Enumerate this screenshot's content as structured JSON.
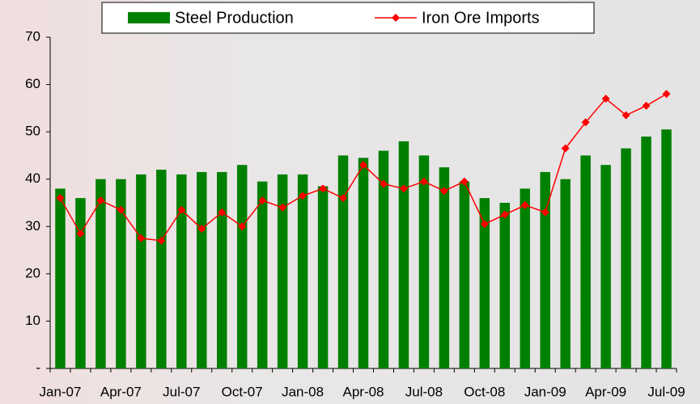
{
  "chart_data": {
    "type": "bar-line",
    "categories": [
      "Jan-07",
      null,
      null,
      "Apr-07",
      null,
      null,
      "Jul-07",
      null,
      null,
      "Oct-07",
      null,
      null,
      "Jan-08",
      null,
      null,
      "Apr-08",
      null,
      null,
      "Jul-08",
      null,
      null,
      "Oct-08",
      null,
      null,
      "Jan-09",
      null,
      null,
      "Apr-09",
      null,
      null,
      "Jul-09"
    ],
    "series": [
      {
        "name": "Steel Production",
        "type": "bar",
        "color": "#008000",
        "values": [
          38,
          36,
          40,
          40,
          41,
          42,
          41,
          41.5,
          41.5,
          43,
          39.5,
          41,
          41,
          38.5,
          45,
          44.5,
          46,
          48,
          45,
          42.5,
          39.5,
          36,
          35,
          38,
          41.5,
          40,
          45,
          43,
          46.5,
          49,
          50.5
        ]
      },
      {
        "name": "Iron Ore Imports",
        "type": "line",
        "color": "#ff0000",
        "values": [
          36,
          28.5,
          35.5,
          33.5,
          27.5,
          27,
          33.5,
          29.5,
          33,
          30,
          35.5,
          34,
          36.5,
          38,
          36,
          43,
          39,
          38,
          39.5,
          37.5,
          39.5,
          30.5,
          32.5,
          34.5,
          33,
          46.5,
          52,
          57,
          53.5,
          55.5,
          58
        ]
      }
    ],
    "ylim": [
      0,
      70
    ],
    "yticks": [
      {
        "value": 0,
        "label": "-"
      },
      10,
      20,
      30,
      40,
      50,
      60,
      70
    ],
    "legend": "top"
  }
}
